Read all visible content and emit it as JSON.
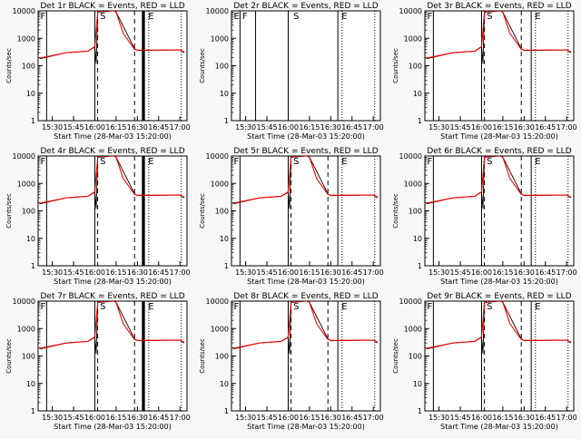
{
  "axis": {
    "ylabel": "Counts/sec",
    "ylim": [
      1,
      10000
    ],
    "yscale": "log",
    "ytick_labels": [
      "1",
      "10",
      "100",
      "1000",
      "10000"
    ],
    "xtick_labels": [
      "15:30",
      "15:45",
      "16:00",
      "16:15",
      "16:30",
      "16:45",
      "17:00"
    ]
  },
  "colors": {
    "events": "#000000",
    "lld": "#ff0000"
  },
  "markers": {
    "start_label": "S",
    "end_label": "E",
    "f_label": "F"
  },
  "chart_data": [
    {
      "type": "line",
      "title": "Det 1r BLACK = Events, RED = LLD",
      "xlabel": "Start Time (28-Mar-03 15:20:00)",
      "xlim": [
        "15:20",
        "17:05"
      ],
      "ylim": [
        1,
        10000
      ],
      "background_level": 300,
      "series": [
        {
          "name": "BLACK = Events",
          "x": [
            "15:21",
            "15:40",
            "15:55",
            "16:00",
            "16:01",
            "16:02",
            "16:13",
            "16:14",
            "16:15",
            "16:28",
            "16:30",
            "17:00",
            "17:03"
          ],
          "y": [
            180,
            300,
            340,
            480,
            120,
            9000,
            10000,
            10000,
            9000,
            420,
            360,
            380,
            300
          ]
        },
        {
          "name": "RED = LLD",
          "x": [
            "15:21",
            "15:40",
            "15:55",
            "16:00",
            "16:02",
            "16:05",
            "16:13",
            "16:15",
            "16:20",
            "16:28",
            "16:30",
            "17:00",
            "17:03"
          ],
          "y": [
            190,
            300,
            340,
            500,
            9000,
            10000,
            10000,
            9000,
            1500,
            400,
            370,
            380,
            320
          ]
        }
      ],
      "vlines": {
        "solid": [
          "15:26",
          "16:00",
          "16:35"
        ],
        "dashed": [
          "16:02",
          "16:28"
        ],
        "dotted": [
          "16:38",
          "17:01"
        ],
        "thick": [
          "16:34"
        ]
      },
      "labels": [
        {
          "text": "F",
          "x": "15:21"
        },
        {
          "text": "S",
          "x": "16:03"
        },
        {
          "text": "E",
          "x": "16:37"
        }
      ]
    },
    {
      "type": "line",
      "title": "Det 2r BLACK = Events, RED = LLD",
      "xlabel": "Start Time (28-Mar-03 15:20:00)",
      "xlim": [
        "15:20",
        "17:05"
      ],
      "ylim": [
        1,
        10000
      ],
      "background_level": 300,
      "series": [],
      "vlines": {
        "solid": [
          "15:26",
          "15:37",
          "16:00",
          "16:35"
        ],
        "dashed": [],
        "dotted": [
          "16:38",
          "17:01"
        ],
        "thick": []
      },
      "labels": [
        {
          "text": "E",
          "x": "15:21"
        },
        {
          "text": "F",
          "x": "15:27"
        },
        {
          "text": "S",
          "x": "16:03"
        },
        {
          "text": "E",
          "x": "16:37"
        }
      ]
    },
    {
      "type": "line",
      "title": "Det 3r BLACK = Events, RED = LLD",
      "xlabel": "Start Time (28-Mar-03 15:20:00)",
      "xlim": [
        "15:20",
        "17:05"
      ],
      "ylim": [
        1,
        10000
      ],
      "background_level": 300,
      "series": [
        {
          "name": "BLACK = Events",
          "x": [
            "15:21",
            "15:40",
            "15:55",
            "16:00",
            "16:01",
            "16:02",
            "16:13",
            "16:14",
            "16:15",
            "16:28",
            "16:30",
            "17:00",
            "17:03"
          ],
          "y": [
            180,
            300,
            340,
            480,
            120,
            9000,
            10000,
            10000,
            9000,
            420,
            360,
            380,
            300
          ]
        },
        {
          "name": "RED = LLD",
          "x": [
            "15:21",
            "15:40",
            "15:55",
            "16:00",
            "16:02",
            "16:05",
            "16:13",
            "16:15",
            "16:20",
            "16:28",
            "16:30",
            "17:00",
            "17:03"
          ],
          "y": [
            190,
            300,
            340,
            500,
            9000,
            10000,
            10000,
            9000,
            1500,
            400,
            370,
            380,
            320
          ]
        }
      ],
      "vlines": {
        "solid": [
          "15:26",
          "16:00",
          "16:35"
        ],
        "dashed": [
          "16:02",
          "16:28"
        ],
        "dotted": [
          "16:38",
          "17:01"
        ],
        "thick": []
      },
      "labels": [
        {
          "text": "F",
          "x": "15:21"
        },
        {
          "text": "S",
          "x": "16:03"
        },
        {
          "text": "E",
          "x": "16:37"
        }
      ]
    },
    {
      "type": "line",
      "title": "Det 4r BLACK = Events, RED = LLD",
      "xlabel": "Start Time (28-Mar-03 15:20:00)",
      "xlim": [
        "15:20",
        "17:05"
      ],
      "ylim": [
        1,
        10000
      ],
      "background_level": 300,
      "series": [
        {
          "name": "BLACK = Events",
          "x": [
            "15:21",
            "15:40",
            "15:55",
            "16:00",
            "16:01",
            "16:02",
            "16:13",
            "16:14",
            "16:15",
            "16:28",
            "16:30",
            "17:00",
            "17:03"
          ],
          "y": [
            180,
            300,
            340,
            480,
            120,
            9000,
            10000,
            10000,
            9000,
            420,
            360,
            380,
            300
          ]
        },
        {
          "name": "RED = LLD",
          "x": [
            "15:21",
            "15:40",
            "15:55",
            "16:00",
            "16:02",
            "16:05",
            "16:13",
            "16:15",
            "16:20",
            "16:28",
            "16:30",
            "17:00",
            "17:03"
          ],
          "y": [
            190,
            300,
            340,
            500,
            9000,
            10000,
            10000,
            9000,
            1500,
            400,
            370,
            380,
            320
          ]
        }
      ],
      "vlines": {
        "solid": [
          "15:26",
          "16:00",
          "16:35"
        ],
        "dashed": [
          "16:02",
          "16:28"
        ],
        "dotted": [
          "16:38",
          "17:01"
        ],
        "thick": [
          "16:34"
        ]
      },
      "labels": [
        {
          "text": "F",
          "x": "15:21"
        },
        {
          "text": "S",
          "x": "16:03"
        },
        {
          "text": "E",
          "x": "16:37"
        }
      ]
    },
    {
      "type": "line",
      "title": "Det 5r BLACK = Events, RED = LLD",
      "xlabel": "Start Time (28-Mar-03 15:20:00)",
      "xlim": [
        "15:20",
        "17:05"
      ],
      "ylim": [
        1,
        10000
      ],
      "background_level": 300,
      "series": [
        {
          "name": "BLACK = Events",
          "x": [
            "15:21",
            "15:40",
            "15:55",
            "16:00",
            "16:01",
            "16:02",
            "16:13",
            "16:14",
            "16:15",
            "16:28",
            "16:30",
            "17:00",
            "17:03"
          ],
          "y": [
            180,
            300,
            340,
            480,
            120,
            9000,
            10000,
            10000,
            9000,
            420,
            360,
            380,
            300
          ]
        },
        {
          "name": "RED = LLD",
          "x": [
            "15:21",
            "15:40",
            "15:55",
            "16:00",
            "16:02",
            "16:05",
            "16:13",
            "16:15",
            "16:20",
            "16:28",
            "16:30",
            "17:00",
            "17:03"
          ],
          "y": [
            190,
            300,
            340,
            500,
            9000,
            10000,
            10000,
            9000,
            1500,
            400,
            370,
            380,
            320
          ]
        }
      ],
      "vlines": {
        "solid": [
          "15:26",
          "16:00",
          "16:35"
        ],
        "dashed": [
          "16:02",
          "16:28"
        ],
        "dotted": [
          "16:38",
          "17:01"
        ],
        "thick": []
      },
      "labels": [
        {
          "text": "F",
          "x": "15:21"
        },
        {
          "text": "S",
          "x": "16:03"
        },
        {
          "text": "E",
          "x": "16:37"
        }
      ]
    },
    {
      "type": "line",
      "title": "Det 6r BLACK = Events, RED = LLD",
      "xlabel": "Start Time (28-Mar-03 15:20:00)",
      "xlim": [
        "15:20",
        "17:05"
      ],
      "ylim": [
        1,
        10000
      ],
      "background_level": 300,
      "series": [
        {
          "name": "BLACK = Events",
          "x": [
            "15:21",
            "15:40",
            "15:55",
            "16:00",
            "16:01",
            "16:02",
            "16:13",
            "16:14",
            "16:15",
            "16:28",
            "16:30",
            "17:00",
            "17:03"
          ],
          "y": [
            180,
            300,
            340,
            480,
            120,
            9000,
            10000,
            10000,
            9000,
            420,
            360,
            380,
            300
          ]
        },
        {
          "name": "RED = LLD",
          "x": [
            "15:21",
            "15:40",
            "15:55",
            "16:00",
            "16:02",
            "16:05",
            "16:13",
            "16:15",
            "16:20",
            "16:28",
            "16:30",
            "17:00",
            "17:03"
          ],
          "y": [
            190,
            300,
            340,
            500,
            9000,
            10000,
            10000,
            9000,
            1500,
            400,
            370,
            380,
            320
          ]
        }
      ],
      "vlines": {
        "solid": [
          "15:26",
          "16:00",
          "16:35"
        ],
        "dashed": [
          "16:02",
          "16:28"
        ],
        "dotted": [
          "16:38",
          "17:01"
        ],
        "thick": []
      },
      "labels": [
        {
          "text": "F",
          "x": "15:21"
        },
        {
          "text": "S",
          "x": "16:03"
        },
        {
          "text": "E",
          "x": "16:37"
        }
      ]
    },
    {
      "type": "line",
      "title": "Det 7r BLACK = Events, RED = LLD",
      "xlabel": "Start Time (28-Mar-03 15:20:00)",
      "xlim": [
        "15:20",
        "17:05"
      ],
      "ylim": [
        1,
        10000
      ],
      "background_level": 300,
      "series": [
        {
          "name": "BLACK = Events",
          "x": [
            "15:21",
            "15:40",
            "15:55",
            "16:00",
            "16:01",
            "16:02",
            "16:13",
            "16:14",
            "16:15",
            "16:28",
            "16:30",
            "17:00",
            "17:03"
          ],
          "y": [
            180,
            300,
            340,
            480,
            120,
            9000,
            10000,
            10000,
            9000,
            420,
            360,
            380,
            300
          ]
        },
        {
          "name": "RED = LLD",
          "x": [
            "15:21",
            "15:40",
            "15:55",
            "16:00",
            "16:02",
            "16:05",
            "16:13",
            "16:15",
            "16:20",
            "16:28",
            "16:30",
            "17:00",
            "17:03"
          ],
          "y": [
            190,
            300,
            340,
            500,
            9000,
            10000,
            10000,
            9000,
            1500,
            400,
            370,
            380,
            320
          ]
        }
      ],
      "vlines": {
        "solid": [
          "15:26",
          "16:00",
          "16:35"
        ],
        "dashed": [
          "16:02",
          "16:28"
        ],
        "dotted": [
          "16:38",
          "17:01"
        ],
        "thick": [
          "16:34"
        ]
      },
      "labels": [
        {
          "text": "F",
          "x": "15:21"
        },
        {
          "text": "S",
          "x": "16:03"
        },
        {
          "text": "E",
          "x": "16:37"
        }
      ]
    },
    {
      "type": "line",
      "title": "Det 8r BLACK = Events, RED = LLD",
      "xlabel": "Start Time (28-Mar-03 15:20:00)",
      "xlim": [
        "15:20",
        "17:05"
      ],
      "ylim": [
        1,
        10000
      ],
      "background_level": 300,
      "series": [
        {
          "name": "BLACK = Events",
          "x": [
            "15:21",
            "15:40",
            "15:55",
            "16:00",
            "16:01",
            "16:02",
            "16:13",
            "16:14",
            "16:15",
            "16:28",
            "16:30",
            "17:00",
            "17:03"
          ],
          "y": [
            180,
            300,
            340,
            480,
            120,
            9000,
            10000,
            10000,
            9000,
            420,
            360,
            380,
            300
          ]
        },
        {
          "name": "RED = LLD",
          "x": [
            "15:21",
            "15:40",
            "15:55",
            "16:00",
            "16:02",
            "16:05",
            "16:13",
            "16:15",
            "16:20",
            "16:28",
            "16:30",
            "17:00",
            "17:03"
          ],
          "y": [
            190,
            300,
            340,
            500,
            9000,
            10000,
            10000,
            9000,
            1500,
            400,
            370,
            380,
            320
          ]
        }
      ],
      "vlines": {
        "solid": [
          "15:26",
          "16:00",
          "16:35"
        ],
        "dashed": [
          "16:02",
          "16:28"
        ],
        "dotted": [
          "16:38",
          "17:01"
        ],
        "thick": []
      },
      "labels": [
        {
          "text": "F",
          "x": "15:21"
        },
        {
          "text": "S",
          "x": "16:03"
        },
        {
          "text": "E",
          "x": "16:37"
        }
      ]
    },
    {
      "type": "line",
      "title": "Det 9r BLACK = Events, RED = LLD",
      "xlabel": "Start Time (28-Mar-03 15:20:00)",
      "xlim": [
        "15:20",
        "17:05"
      ],
      "ylim": [
        1,
        10000
      ],
      "background_level": 300,
      "series": [
        {
          "name": "BLACK = Events",
          "x": [
            "15:21",
            "15:40",
            "15:55",
            "16:00",
            "16:01",
            "16:02",
            "16:13",
            "16:14",
            "16:15",
            "16:28",
            "16:30",
            "17:00",
            "17:03"
          ],
          "y": [
            180,
            300,
            340,
            480,
            120,
            9000,
            10000,
            10000,
            9000,
            420,
            360,
            380,
            300
          ]
        },
        {
          "name": "RED = LLD",
          "x": [
            "15:21",
            "15:40",
            "15:55",
            "16:00",
            "16:02",
            "16:05",
            "16:13",
            "16:15",
            "16:20",
            "16:28",
            "16:30",
            "17:00",
            "17:03"
          ],
          "y": [
            190,
            300,
            340,
            500,
            9000,
            10000,
            10000,
            9000,
            1500,
            400,
            370,
            380,
            320
          ]
        }
      ],
      "vlines": {
        "solid": [
          "15:26",
          "16:00",
          "16:35"
        ],
        "dashed": [
          "16:02",
          "16:28"
        ],
        "dotted": [
          "16:38",
          "17:01"
        ],
        "thick": []
      },
      "labels": [
        {
          "text": "F",
          "x": "15:21"
        },
        {
          "text": "S",
          "x": "16:03"
        },
        {
          "text": "E",
          "x": "16:37"
        }
      ]
    }
  ]
}
